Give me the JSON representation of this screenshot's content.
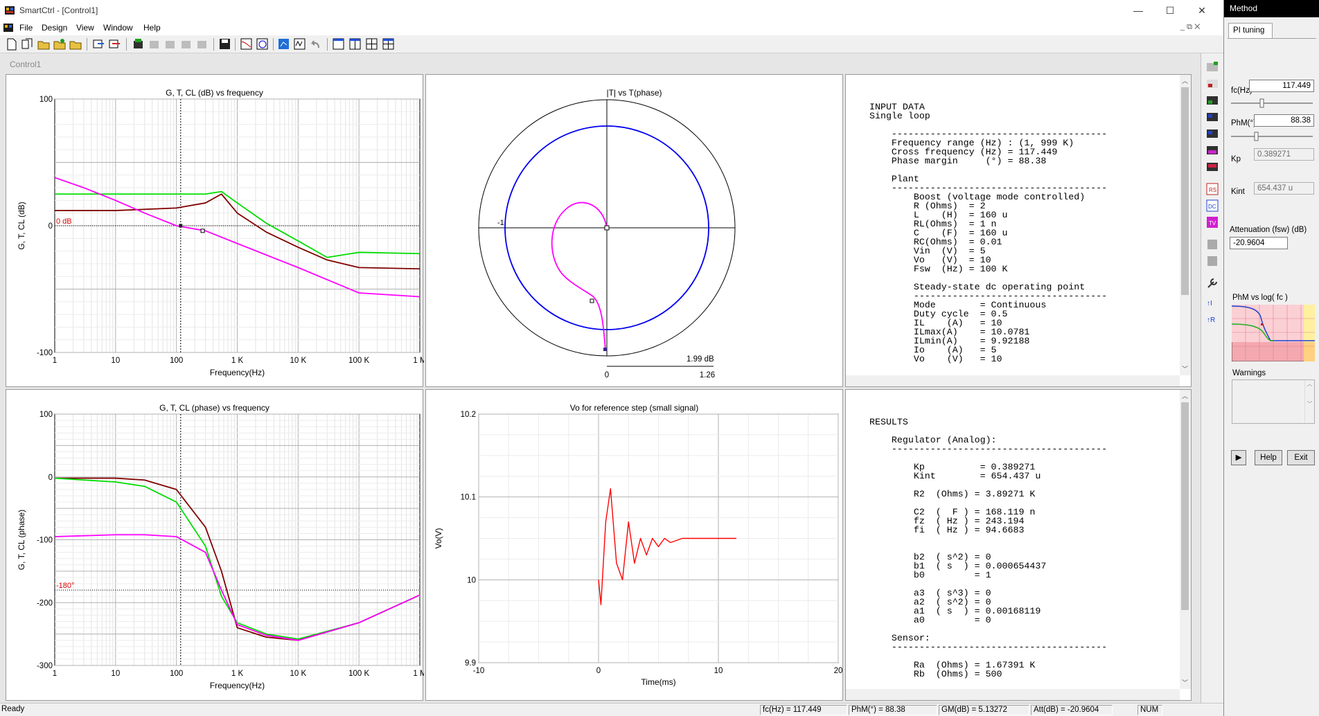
{
  "window": {
    "title": "SmartCtrl - [Control1]",
    "min_glyph": "—",
    "max_glyph": "☐",
    "close_glyph": "✕"
  },
  "menu": [
    "File",
    "Design",
    "View",
    "Window",
    "Help"
  ],
  "mdi_child": {
    "title": "Control1"
  },
  "colors": {
    "plant_G": "#800000",
    "loop_T": "#00dd00",
    "closed_CL": "#ff00ff",
    "nyquist": "#0000ee",
    "step": "#ff0000"
  },
  "panels": {
    "gain": {
      "title": "G, T, CL (dB) vs frequency",
      "ylabel": "G, T, CL (dB)",
      "xlabel": "Frequency(Hz)",
      "y_ticks": [
        "100",
        "0",
        "-100"
      ],
      "x_ticks": [
        "1",
        "10",
        "100",
        "1 K",
        "10 K",
        "100 K",
        "1 M"
      ],
      "ref_label": "0 dB"
    },
    "nyquist": {
      "title": "|T| vs T(phase)",
      "left_label": "-1",
      "mag_label": "1.99 dB",
      "x_ticks": [
        "0",
        "1.26"
      ]
    },
    "phase": {
      "title": "G, T, CL (phase) vs frequency",
      "ylabel": "G, T, CL (phase)",
      "xlabel": "Frequency(Hz)",
      "y_ticks": [
        "100",
        "0",
        "-100",
        "-200",
        "-300"
      ],
      "x_ticks": [
        "1",
        "10",
        "100",
        "1 K",
        "10 K",
        "100 K",
        "1 M"
      ],
      "ref_label": "-180°"
    },
    "step": {
      "title": "Vo for reference step (small signal)",
      "ylabel": "Vo(V)",
      "xlabel": "Time(ms)",
      "y_ticks": [
        "10.2",
        "10.1",
        "10",
        "9.9"
      ],
      "x_ticks": [
        "-10",
        "0",
        "10",
        "20"
      ]
    }
  },
  "chart_data": [
    {
      "type": "line",
      "title": "G, T, CL (dB) vs frequency",
      "xlabel": "Frequency(Hz)",
      "ylabel": "G, T, CL (dB)",
      "x_scale": "log",
      "xlim": [
        1,
        1000000
      ],
      "ylim": [
        -100,
        100
      ],
      "series": [
        {
          "name": "G",
          "x": [
            1,
            10,
            100,
            300,
            550,
            1000,
            3000,
            10000,
            30000,
            100000,
            1000000
          ],
          "y": [
            12,
            12,
            14,
            18,
            25,
            10,
            -5,
            -17,
            -27,
            -33,
            -34
          ]
        },
        {
          "name": "T",
          "x": [
            1,
            10,
            100,
            300,
            550,
            1000,
            3000,
            10000,
            30000,
            100000,
            1000000
          ],
          "y": [
            25,
            25,
            25,
            25,
            27,
            18,
            2,
            -12,
            -25,
            -21,
            -22
          ]
        },
        {
          "name": "CL",
          "x": [
            1,
            3,
            10,
            30,
            100,
            300,
            1000,
            10000,
            100000,
            1000000
          ],
          "y": [
            38,
            30,
            20,
            10,
            0,
            -4,
            -14,
            -33,
            -53,
            -56
          ]
        }
      ]
    },
    {
      "type": "line",
      "title": "|T| vs T(phase)",
      "series": [
        {
          "name": "T circle",
          "mag_db": -3,
          "note": "closed contour"
        },
        {
          "name": "T locus",
          "points": "spiral"
        }
      ]
    },
    {
      "type": "line",
      "title": "G, T, CL (phase) vs frequency",
      "xlabel": "Frequency(Hz)",
      "ylabel": "G, T, CL (phase)",
      "x_scale": "log",
      "xlim": [
        1,
        1000000
      ],
      "ylim": [
        -300,
        100
      ],
      "series": [
        {
          "name": "G",
          "x": [
            1,
            10,
            30,
            100,
            300,
            550,
            1000,
            3000,
            10000,
            100000,
            1000000
          ],
          "y": [
            -2,
            -2,
            -5,
            -20,
            -80,
            -150,
            -240,
            -255,
            -260,
            -232,
            -188
          ]
        },
        {
          "name": "T",
          "x": [
            1,
            10,
            30,
            100,
            300,
            550,
            1000,
            3000,
            10000,
            100000,
            1000000
          ],
          "y": [
            -2,
            -8,
            -15,
            -40,
            -110,
            -190,
            -232,
            -250,
            -258,
            -232,
            -188
          ]
        },
        {
          "name": "CL",
          "x": [
            1,
            10,
            30,
            100,
            300,
            550,
            1000,
            3000,
            10000,
            100000,
            1000000
          ],
          "y": [
            -95,
            -92,
            -92,
            -95,
            -120,
            -180,
            -235,
            -252,
            -260,
            -232,
            -188
          ]
        }
      ]
    },
    {
      "type": "line",
      "title": "Vo for reference step (small signal)",
      "xlabel": "Time(ms)",
      "ylabel": "Vo(V)",
      "xlim": [
        -10,
        20
      ],
      "ylim": [
        9.9,
        10.2
      ],
      "series": [
        {
          "name": "Vo",
          "x": [
            0,
            0.2,
            0.6,
            1.0,
            1.5,
            2.0,
            2.5,
            3.0,
            3.5,
            4.0,
            4.5,
            5.0,
            5.5,
            6.0,
            7.0,
            8.0,
            11.5
          ],
          "y": [
            10.0,
            9.97,
            10.07,
            10.11,
            10.02,
            10.0,
            10.07,
            10.02,
            10.05,
            10.03,
            10.05,
            10.04,
            10.05,
            10.045,
            10.05,
            10.05,
            10.05
          ]
        }
      ]
    }
  ],
  "report_input": "INPUT DATA\nSingle loop\n\n    ---------------------------------------\n    Frequency range (Hz) : (1, 999 K)\n    Cross frequency (Hz) = 117.449\n    Phase margin     (°) = 88.38\n\n    Plant\n    ---------------------------------------\n        Boost (voltage mode controlled)\n        R (Ohms)  = 2\n        L    (H)  = 160 u\n        RL(Ohms)  = 1 n\n        C    (F)  = 160 u\n        RC(Ohms)  = 0.01\n        Vin  (V)  = 5\n        Vo   (V)  = 10\n        Fsw  (Hz) = 100 K\n\n        Steady-state dc operating point\n        -----------------------------------\n        Mode        = Continuous\n        Duty cycle  = 0.5\n        IL    (A)   = 10\n        ILmax(A)    = 10.0781\n        ILmin(A)    = 9.92188\n        Io    (A)   = 5\n        Vo    (V)   = 10",
  "report_results": "RESULTS\n\n    Regulator (Analog):\n    ---------------------------------------\n\n        Kp          = 0.389271\n        Kint        = 654.437 u\n\n        R2  (Ohms) = 3.89271 K\n\n        C2  (  F ) = 168.119 n\n        fz  ( Hz ) = 243.194\n        fi  ( Hz ) = 94.6683\n\n\n        b2  ( s^2) = 0\n        b1  ( s  ) = 0.000654437\n        b0         = 1\n\n        a3  ( s^3) = 0\n        a2  ( s^2) = 0\n        a1  ( s  ) = 0.00168119\n        a0         = 0\n\n    Sensor:\n    ---------------------------------------\n\n        Ra  (Ohms) = 1.67391 K\n        Rb  (Ohms) = 500",
  "status": {
    "ready": "Ready",
    "fc": "fc(Hz) = 117.449",
    "phm": "PhM(°) = 88.38",
    "gm": "GM(dB) = 5.13272",
    "att": "Att(dB) = -20.9604",
    "num": "NUM"
  },
  "method": {
    "header": "Method",
    "tab": "PI tuning",
    "fc_label": "fc(Hz)",
    "fc_value": "117.449",
    "phm_label": "PhM(°)",
    "phm_value": "88.38",
    "kp_label": "Kp",
    "kp_value": "0.389271",
    "kint_label": "Kint",
    "kint_value": "654.437 u",
    "att_label": "Attenuation (fsw) (dB)",
    "att_value": "-20.9604",
    "phm_graph_label": "PhM vs log( fc )",
    "warnings_label": "Warnings",
    "help_label": "Help",
    "exit_label": "Exit",
    "play_glyph": "▶"
  }
}
